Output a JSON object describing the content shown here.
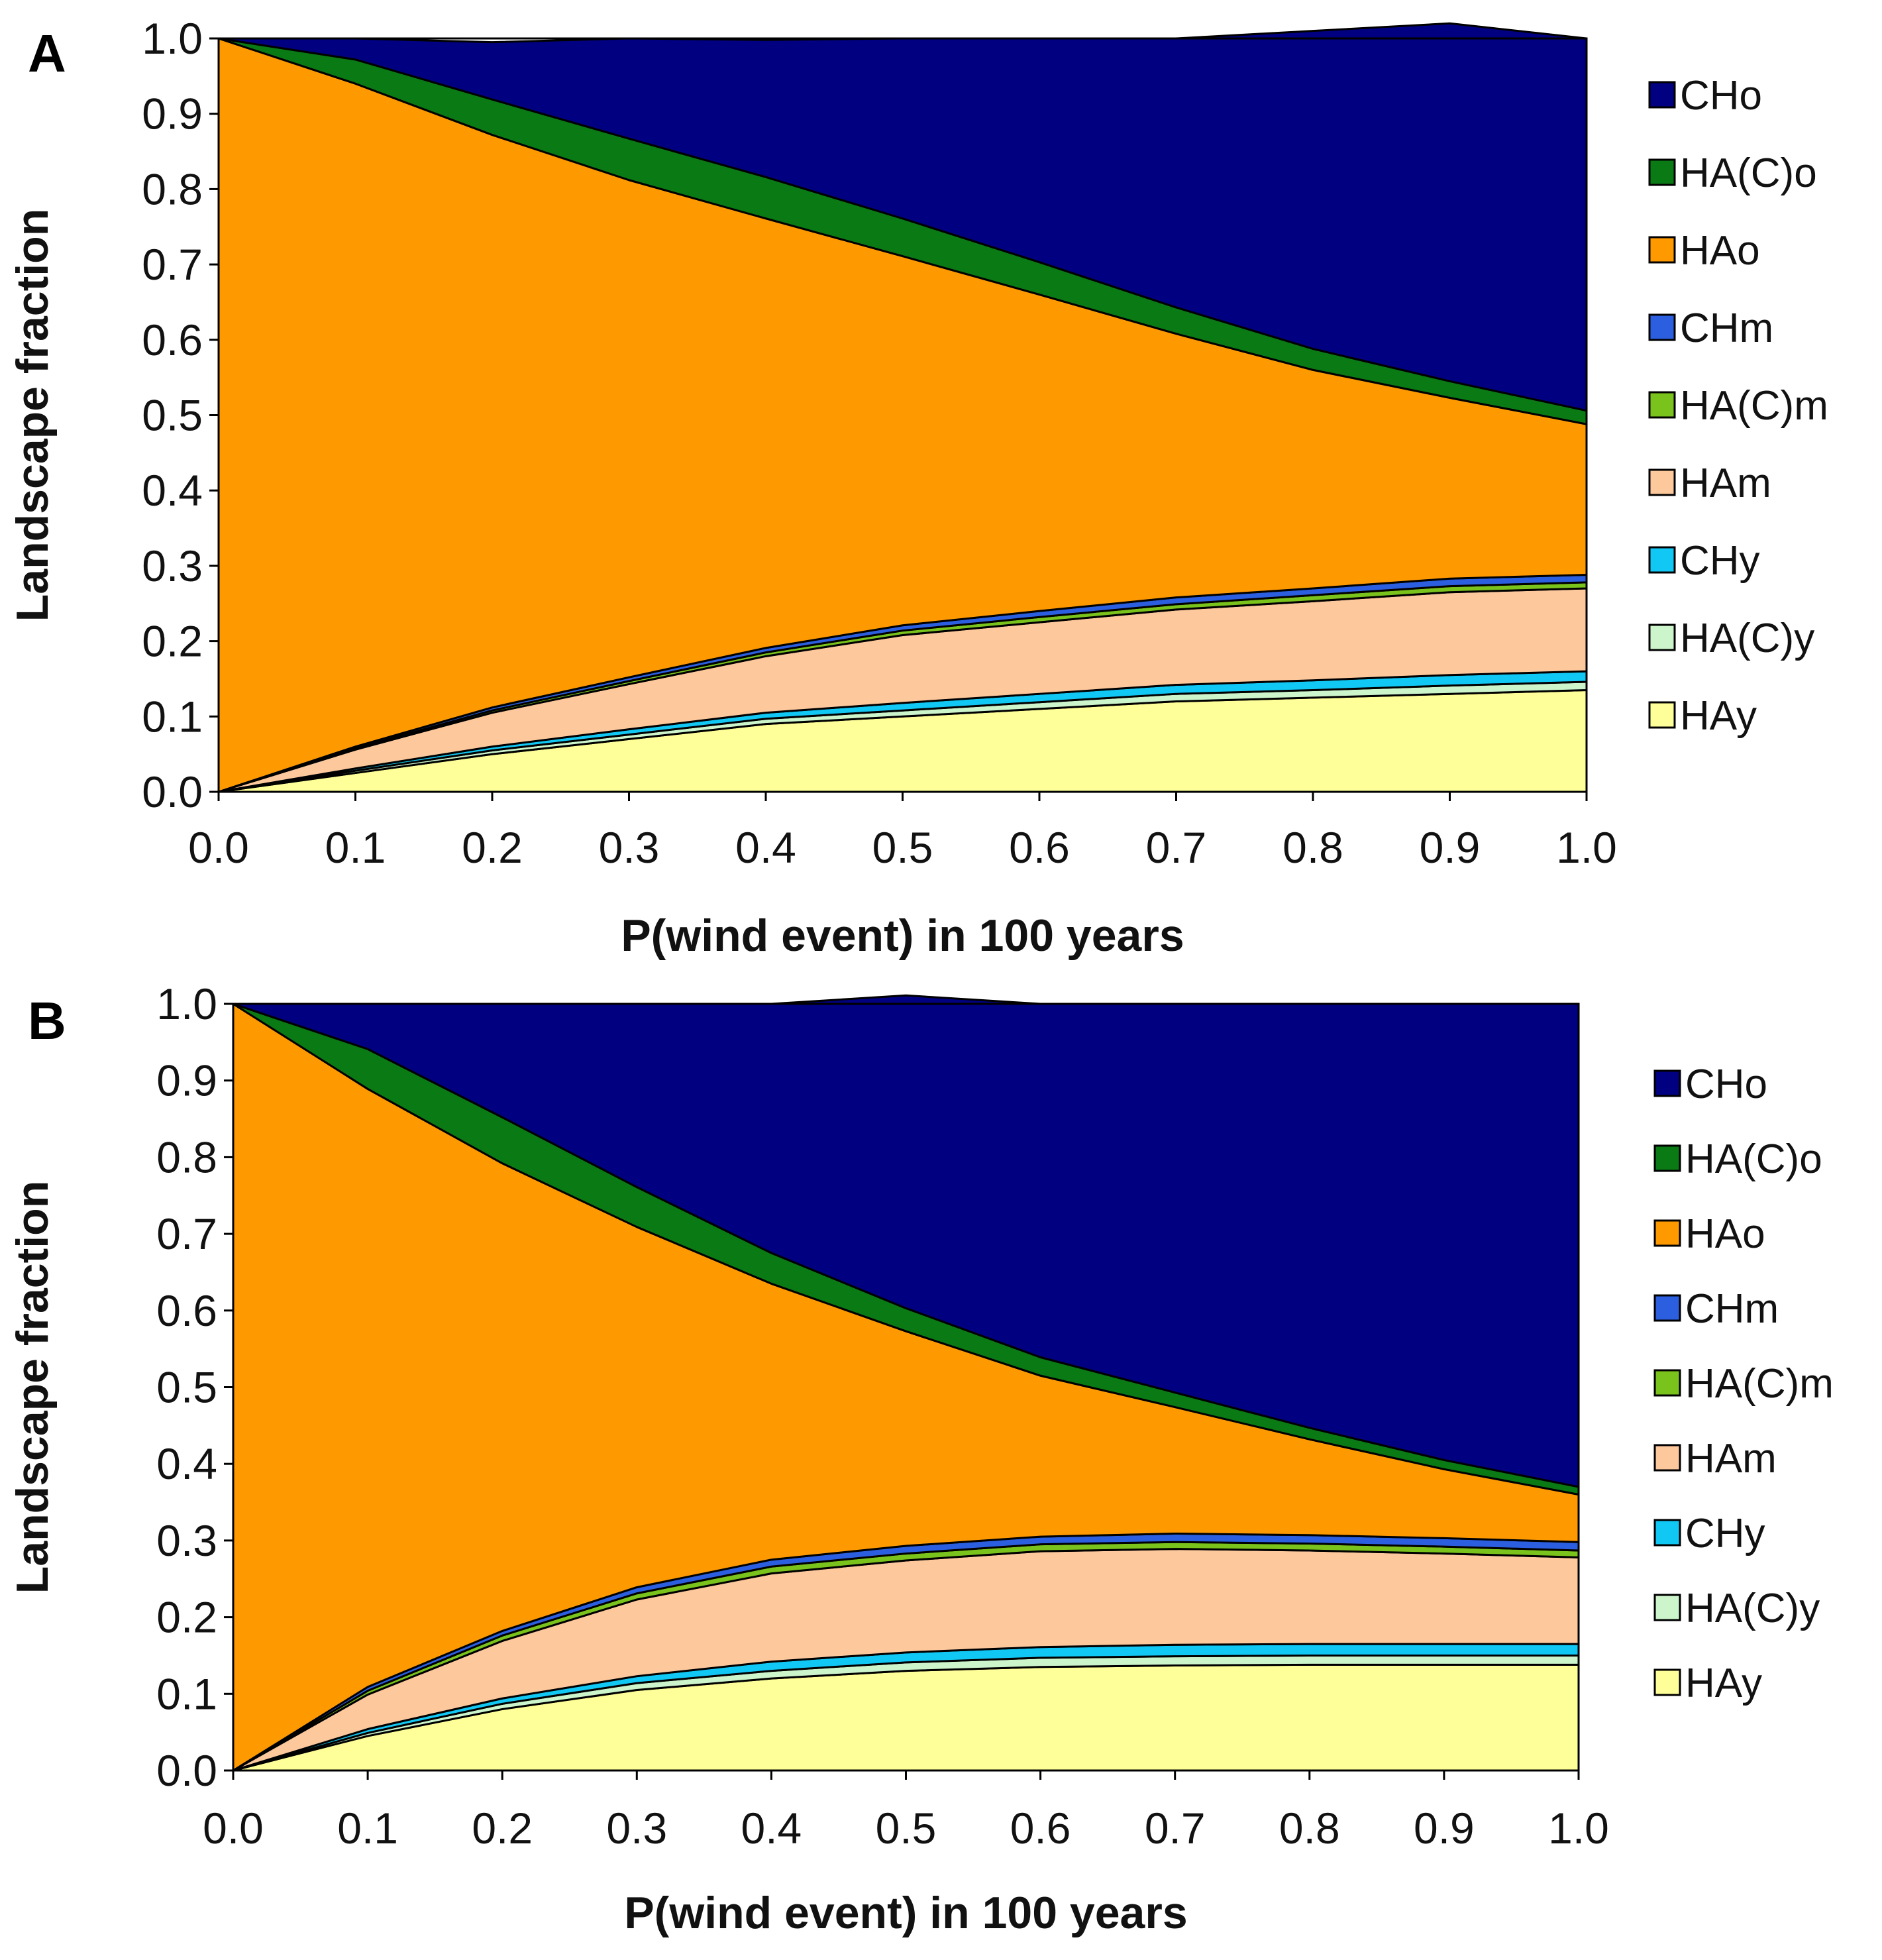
{
  "colors": {
    "CHo": "#000080",
    "HA(C)o": "#0a7a14",
    "HAo": "#ff9900",
    "CHm": "#2b5fe0",
    "HA(C)m": "#7ac21c",
    "HAm": "#fcc89c",
    "CHy": "#11c8f5",
    "HA(C)y": "#cdf5cc",
    "HAy": "#ffff99"
  },
  "chart_data": [
    {
      "panel": "A",
      "type": "area",
      "stacked": true,
      "xlabel": "P(wind event) in 100 years",
      "ylabel": "Landscape fraction",
      "xlim": [
        0,
        1
      ],
      "ylim": [
        0,
        1
      ],
      "x_ticks": [
        "0.0",
        "0.1",
        "0.2",
        "0.3",
        "0.4",
        "0.5",
        "0.6",
        "0.7",
        "0.8",
        "0.9",
        "1.0"
      ],
      "y_ticks": [
        "0.0",
        "0.1",
        "0.2",
        "0.3",
        "0.4",
        "0.5",
        "0.6",
        "0.7",
        "0.8",
        "0.9",
        "1.0"
      ],
      "legend": [
        "CHo",
        "HA(C)o",
        "HAo",
        "CHm",
        "HA(C)m",
        "HAm",
        "CHy",
        "HA(C)y",
        "HAy"
      ],
      "x": [
        0.0,
        0.1,
        0.2,
        0.3,
        0.4,
        0.5,
        0.6,
        0.7,
        0.8,
        0.9,
        1.0
      ],
      "series": [
        {
          "name": "HAy",
          "values": [
            0.0,
            0.025,
            0.05,
            0.07,
            0.09,
            0.1,
            0.11,
            0.12,
            0.125,
            0.13,
            0.135
          ]
        },
        {
          "name": "HA(C)y",
          "values": [
            0.0,
            0.003,
            0.005,
            0.006,
            0.007,
            0.008,
            0.009,
            0.01,
            0.01,
            0.011,
            0.011
          ]
        },
        {
          "name": "CHy",
          "values": [
            0.0,
            0.003,
            0.005,
            0.007,
            0.008,
            0.01,
            0.011,
            0.012,
            0.013,
            0.014,
            0.014
          ]
        },
        {
          "name": "HAm",
          "values": [
            0.0,
            0.025,
            0.045,
            0.06,
            0.075,
            0.09,
            0.095,
            0.1,
            0.105,
            0.11,
            0.11
          ]
        },
        {
          "name": "HA(C)m",
          "values": [
            0.0,
            0.002,
            0.003,
            0.004,
            0.005,
            0.006,
            0.007,
            0.007,
            0.008,
            0.008,
            0.008
          ]
        },
        {
          "name": "CHm",
          "values": [
            0.0,
            0.002,
            0.004,
            0.005,
            0.006,
            0.007,
            0.008,
            0.009,
            0.009,
            0.01,
            0.01
          ]
        },
        {
          "name": "HAo",
          "values": [
            1.0,
            0.88,
            0.76,
            0.66,
            0.57,
            0.49,
            0.42,
            0.35,
            0.29,
            0.24,
            0.2
          ]
        },
        {
          "name": "HA(C)o",
          "values": [
            0.0,
            0.032,
            0.047,
            0.055,
            0.055,
            0.05,
            0.043,
            0.035,
            0.028,
            0.022,
            0.018
          ]
        },
        {
          "name": "CHo",
          "values": [
            0.0,
            0.028,
            0.076,
            0.133,
            0.182,
            0.239,
            0.297,
            0.357,
            0.422,
            0.475,
            0.494
          ]
        }
      ]
    },
    {
      "panel": "B",
      "type": "area",
      "stacked": true,
      "xlabel": "P(wind event) in 100 years",
      "ylabel": "Landscape fraction",
      "xlim": [
        0,
        1
      ],
      "ylim": [
        0,
        1
      ],
      "x_ticks": [
        "0.0",
        "0.1",
        "0.2",
        "0.3",
        "0.4",
        "0.5",
        "0.6",
        "0.7",
        "0.8",
        "0.9",
        "1.0"
      ],
      "y_ticks": [
        "0.0",
        "0.1",
        "0.2",
        "0.3",
        "0.4",
        "0.5",
        "0.6",
        "0.7",
        "0.8",
        "0.9",
        "1.0"
      ],
      "legend": [
        "CHo",
        "HA(C)o",
        "HAo",
        "CHm",
        "HA(C)m",
        "HAm",
        "CHy",
        "HA(C)y",
        "HAy"
      ],
      "x": [
        0.0,
        0.1,
        0.2,
        0.3,
        0.4,
        0.5,
        0.6,
        0.7,
        0.8,
        0.9,
        1.0
      ],
      "series": [
        {
          "name": "HAy",
          "values": [
            0.0,
            0.045,
            0.08,
            0.105,
            0.12,
            0.13,
            0.135,
            0.137,
            0.138,
            0.138,
            0.138
          ]
        },
        {
          "name": "HA(C)y",
          "values": [
            0.0,
            0.004,
            0.007,
            0.009,
            0.01,
            0.011,
            0.012,
            0.012,
            0.012,
            0.012,
            0.012
          ]
        },
        {
          "name": "CHy",
          "values": [
            0.0,
            0.005,
            0.007,
            0.009,
            0.012,
            0.013,
            0.014,
            0.015,
            0.015,
            0.015,
            0.015
          ]
        },
        {
          "name": "HAm",
          "values": [
            0.0,
            0.045,
            0.075,
            0.1,
            0.115,
            0.12,
            0.125,
            0.125,
            0.122,
            0.118,
            0.113
          ]
        },
        {
          "name": "HA(C)m",
          "values": [
            0.0,
            0.005,
            0.007,
            0.008,
            0.009,
            0.009,
            0.009,
            0.009,
            0.009,
            0.009,
            0.009
          ]
        },
        {
          "name": "CHm",
          "values": [
            0.0,
            0.005,
            0.006,
            0.008,
            0.009,
            0.01,
            0.01,
            0.011,
            0.011,
            0.011,
            0.011
          ]
        },
        {
          "name": "HAo",
          "values": [
            1.0,
            0.78,
            0.61,
            0.47,
            0.36,
            0.28,
            0.21,
            0.165,
            0.125,
            0.09,
            0.062
          ]
        },
        {
          "name": "HA(C)o",
          "values": [
            0.0,
            0.052,
            0.06,
            0.052,
            0.04,
            0.03,
            0.024,
            0.019,
            0.015,
            0.012,
            0.01
          ]
        },
        {
          "name": "CHo",
          "values": [
            0.0,
            0.059,
            0.148,
            0.239,
            0.325,
            0.408,
            0.461,
            0.507,
            0.553,
            0.595,
            0.63
          ]
        }
      ]
    }
  ]
}
